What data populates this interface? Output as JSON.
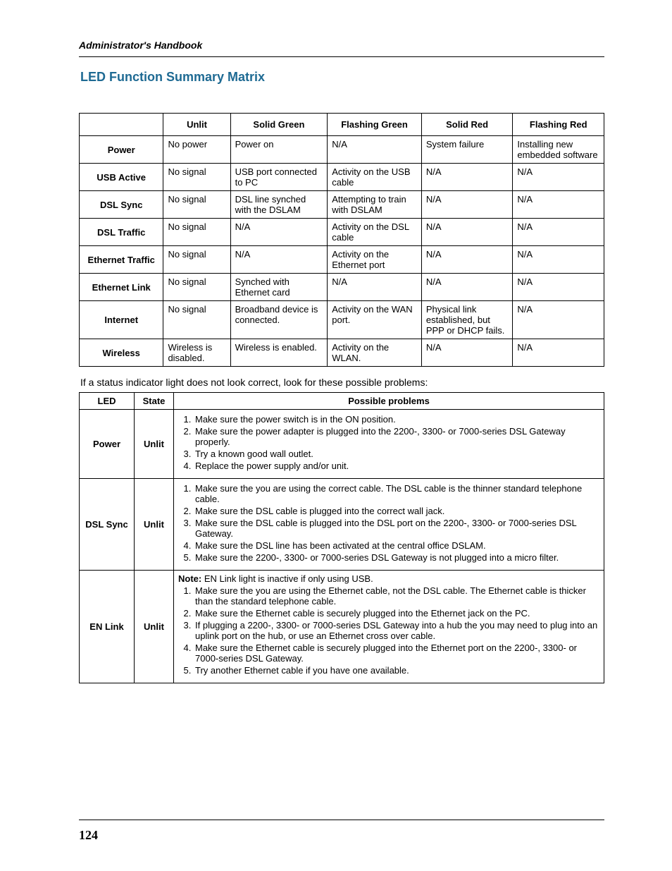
{
  "running_head": "Administrator's Handbook",
  "section_title": "LED Function Summary Matrix",
  "page_number": "124",
  "matrix": {
    "headers": [
      "",
      "Unlit",
      "Solid Green",
      "Flashing Green",
      "Solid Red",
      "Flashing Red"
    ],
    "rows": [
      {
        "label": "Power",
        "cells": [
          "No power",
          "Power on",
          "N/A",
          "System failure",
          "Installing new embedded software"
        ]
      },
      {
        "label": "USB Active",
        "cells": [
          "No signal",
          "USB port connected to PC",
          "Activity on the USB cable",
          "N/A",
          "N/A"
        ]
      },
      {
        "label": "DSL Sync",
        "cells": [
          "No signal",
          "DSL line synched with the DSLAM",
          "Attempting to train with DSLAM",
          "N/A",
          "N/A"
        ]
      },
      {
        "label": "DSL Traffic",
        "cells": [
          "No signal",
          "N/A",
          "Activity on the DSL cable",
          "N/A",
          "N/A"
        ]
      },
      {
        "label": "Ethernet Traffic",
        "cells": [
          "No signal",
          "N/A",
          "Activity on the Ethernet port",
          "N/A",
          "N/A"
        ]
      },
      {
        "label": "Ethernet Link",
        "cells": [
          "No signal",
          "Synched with Ethernet card",
          "N/A",
          "N/A",
          "N/A"
        ]
      },
      {
        "label": "Internet",
        "cells": [
          "No signal",
          "Broadband device is connected.",
          "Activity on the WAN port.",
          "Physical link established, but PPP or DHCP fails.",
          "N/A"
        ]
      },
      {
        "label": "Wireless",
        "cells": [
          "Wireless is disabled.",
          "Wireless is enabled.",
          "Activity on the WLAN.",
          "N/A",
          "N/A"
        ]
      }
    ]
  },
  "intertext": "If a status indicator light does not look correct, look for these possible problems:",
  "problems": {
    "headers": [
      "LED",
      "State",
      "Possible problems"
    ],
    "rows": [
      {
        "led": "Power",
        "state": "Unlit",
        "note": null,
        "items": [
          "Make sure the power switch is in the ON position.",
          "Make sure the power adapter is plugged into the 2200-, 3300- or 7000-series DSL Gateway properly.",
          "Try a known good wall outlet.",
          "Replace the power supply and/or unit."
        ]
      },
      {
        "led": "DSL Sync",
        "state": "Unlit",
        "note": null,
        "items": [
          "Make sure the you are using the correct cable. The DSL cable is the thinner standard telephone cable.",
          "Make sure the DSL cable is plugged into the correct wall jack.",
          "Make sure the DSL cable is plugged into the DSL port on the 2200-, 3300- or 7000-series DSL Gateway.",
          "Make sure the DSL line has been activated at the central office DSLAM.",
          "Make sure the 2200-, 3300- or 7000-series DSL Gateway is not plugged into a micro filter."
        ]
      },
      {
        "led": "EN Link",
        "state": "Unlit",
        "note_label": "Note:",
        "note": " EN Link light is inactive if only using USB.",
        "items": [
          "Make sure the you are using the Ethernet cable, not the DSL cable. The Ethernet cable is thicker than the standard telephone cable.",
          "Make sure the Ethernet cable is securely plugged into the Ethernet jack on the PC.",
          "If plugging a 2200-, 3300- or 7000-series DSL Gateway into a hub the you may need to plug into an uplink port on the hub, or use an Ethernet cross over cable.",
          "Make sure the Ethernet cable is securely plugged into the Ethernet port on the 2200-, 3300- or 7000-series DSL Gateway.",
          "Try another Ethernet cable if you have one available."
        ]
      }
    ]
  },
  "col_widths": {
    "matrix": [
      "118px",
      "94px",
      "136px",
      "132px",
      "128px",
      "128px"
    ],
    "problems": [
      "78px",
      "56px",
      "auto"
    ]
  }
}
